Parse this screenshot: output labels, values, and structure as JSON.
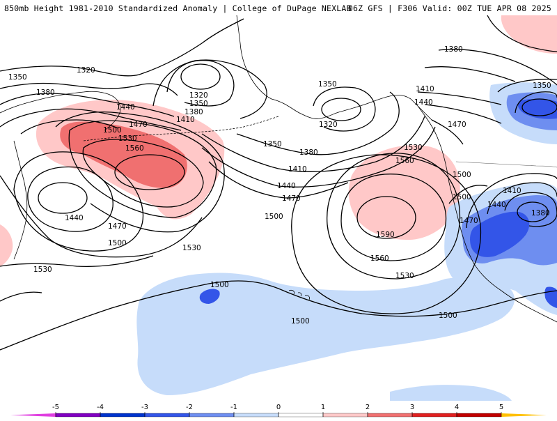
{
  "header": {
    "title_left": "850mb Height 1981-2010 Standardized Anomaly | College of DuPage NEXLAB",
    "title_right": "06Z GFS | F306 Valid: 00Z TUE APR 08 2025"
  },
  "contour_labels": [
    {
      "id": "c1320a",
      "text": "1320"
    },
    {
      "id": "c1350a",
      "text": "1350"
    },
    {
      "id": "c1380a",
      "text": "1380"
    },
    {
      "id": "c1320b",
      "text": "1320"
    },
    {
      "id": "c1350b",
      "text": "1350"
    },
    {
      "id": "c1380b",
      "text": "1380"
    },
    {
      "id": "c1410a",
      "text": "1410"
    },
    {
      "id": "c1440a",
      "text": "1440"
    },
    {
      "id": "c1470a",
      "text": "1470"
    },
    {
      "id": "c1500a",
      "text": "1500"
    },
    {
      "id": "c1530a",
      "text": "1530"
    },
    {
      "id": "c1560a",
      "text": "1560"
    },
    {
      "id": "c1440b",
      "text": "1440"
    },
    {
      "id": "c1470b",
      "text": "1470"
    },
    {
      "id": "c1500b",
      "text": "1500"
    },
    {
      "id": "c1530b",
      "text": "1530"
    },
    {
      "id": "c1530c",
      "text": "1530"
    },
    {
      "id": "c1350c",
      "text": "1350"
    },
    {
      "id": "c1320c",
      "text": "1320"
    },
    {
      "id": "c1350d",
      "text": "1350"
    },
    {
      "id": "c1380c",
      "text": "1380"
    },
    {
      "id": "c1410b",
      "text": "1410"
    },
    {
      "id": "c1440c",
      "text": "1440"
    },
    {
      "id": "c1470c",
      "text": "1470"
    },
    {
      "id": "c1500c",
      "text": "1500"
    },
    {
      "id": "c1530d",
      "text": "1530"
    },
    {
      "id": "c1560b",
      "text": "1560"
    },
    {
      "id": "c1590a",
      "text": "1590"
    },
    {
      "id": "c1560c",
      "text": "1560"
    },
    {
      "id": "c1530e",
      "text": "1530"
    },
    {
      "id": "c1500d",
      "text": "1500"
    },
    {
      "id": "c1500e",
      "text": "1500"
    },
    {
      "id": "c1500f",
      "text": "1500"
    },
    {
      "id": "c1500g",
      "text": "1500"
    },
    {
      "id": "c1380d",
      "text": "1380"
    },
    {
      "id": "c1350e",
      "text": "1350"
    },
    {
      "id": "c1410c",
      "text": "1410"
    },
    {
      "id": "c1440d",
      "text": "1440"
    },
    {
      "id": "c1470d",
      "text": "1470"
    },
    {
      "id": "c1410d",
      "text": "1410"
    },
    {
      "id": "c1440e",
      "text": "1440"
    },
    {
      "id": "c1470e",
      "text": "1470"
    },
    {
      "id": "c1380e",
      "text": "1380"
    },
    {
      "id": "c1500h",
      "text": "1500"
    }
  ],
  "colorbar": {
    "ticks": [
      "-5",
      "-4",
      "-3",
      "-2",
      "-1",
      "0",
      "1",
      "2",
      "3",
      "4",
      "5"
    ],
    "colors": [
      "#e040e0",
      "#8000c0",
      "#0033cc",
      "#3355e8",
      "#6e8ef0",
      "#c6dcfa",
      "#ffffff",
      "#ffc8c8",
      "#f07070",
      "#e02020",
      "#c00000",
      "#ff9900",
      "#ffc000"
    ]
  },
  "legend_colors": {
    "neg_strong": "#3355e8",
    "neg_mid": "#6e8ef0",
    "neg_weak": "#c6dcfa",
    "pos_weak": "#ffc8c8",
    "pos_mid": "#f07070"
  }
}
